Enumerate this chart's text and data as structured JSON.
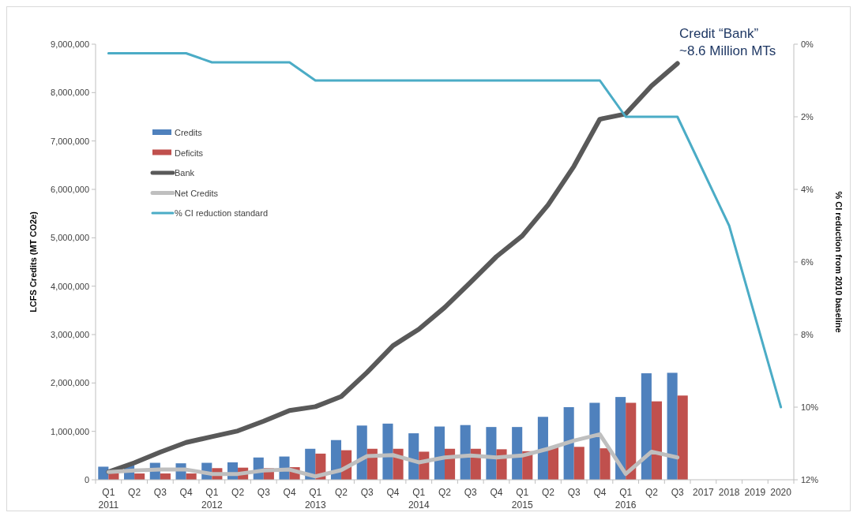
{
  "chart_data": {
    "type": "bar",
    "ylabel": "LCFS Credits (MT CO2e)",
    "y2label": "% CI reduction from 2010 baseline",
    "categories": [
      "Q1\n2011",
      "Q2",
      "Q3",
      "Q4",
      "Q1\n2012",
      "Q2",
      "Q3",
      "Q4",
      "Q1\n2013",
      "Q2",
      "Q3",
      "Q4",
      "Q1\n2014",
      "Q2",
      "Q3",
      "Q4",
      "Q1\n2015",
      "Q2",
      "Q3",
      "Q4",
      "Q1\n2016",
      "Q2",
      "Q3",
      "2017",
      "2018",
      "2019",
      "2020"
    ],
    "ylim": [
      0,
      9000000
    ],
    "yticks": [
      {
        "value": 0,
        "label": "0"
      },
      {
        "value": 1000000,
        "label": "1,000,000"
      },
      {
        "value": 2000000,
        "label": "2,000,000"
      },
      {
        "value": 3000000,
        "label": "3,000,000"
      },
      {
        "value": 4000000,
        "label": "4,000,000"
      },
      {
        "value": 5000000,
        "label": "5,000,000"
      },
      {
        "value": 6000000,
        "label": "6,000,000"
      },
      {
        "value": 7000000,
        "label": "7,000,000"
      },
      {
        "value": 8000000,
        "label": "8,000,000"
      },
      {
        "value": 9000000,
        "label": "9,000,000"
      }
    ],
    "y2lim": [
      12,
      0
    ],
    "y2ticks": [
      {
        "value": 0,
        "label": "0%"
      },
      {
        "value": 2,
        "label": "2%"
      },
      {
        "value": 4,
        "label": "4%"
      },
      {
        "value": 6,
        "label": "6%"
      },
      {
        "value": 8,
        "label": "8%"
      },
      {
        "value": 10,
        "label": "10%"
      },
      {
        "value": 12,
        "label": "12%"
      }
    ],
    "series": [
      {
        "name": "Credits",
        "color": "#4f81bd",
        "values": [
          270000,
          320000,
          350000,
          340000,
          350000,
          360000,
          460000,
          480000,
          640000,
          820000,
          1120000,
          1160000,
          960000,
          1100000,
          1130000,
          1090000,
          1090000,
          1300000,
          1500000,
          1590000,
          1710000,
          2200000,
          2210000,
          null,
          null,
          null,
          null
        ]
      },
      {
        "name": "Deficits",
        "color": "#c0504d",
        "values": [
          150000,
          130000,
          130000,
          130000,
          240000,
          250000,
          240000,
          260000,
          540000,
          610000,
          640000,
          640000,
          580000,
          640000,
          640000,
          630000,
          590000,
          670000,
          680000,
          650000,
          1590000,
          1620000,
          1740000,
          null,
          null,
          null,
          null
        ]
      },
      {
        "name": "Bank",
        "type": "line",
        "color": "#595959",
        "values": [
          160000,
          350000,
          570000,
          770000,
          890000,
          1010000,
          1210000,
          1430000,
          1510000,
          1720000,
          2220000,
          2770000,
          3110000,
          3560000,
          4080000,
          4610000,
          5040000,
          5680000,
          6480000,
          7450000,
          7560000,
          8140000,
          8600000,
          null,
          null,
          null,
          null
        ]
      },
      {
        "name": "Net Credits",
        "type": "line",
        "color": "#bfbfbf",
        "values": [
          160000,
          190000,
          210000,
          210000,
          120000,
          120000,
          190000,
          210000,
          70000,
          200000,
          490000,
          510000,
          360000,
          460000,
          500000,
          460000,
          500000,
          640000,
          810000,
          940000,
          120000,
          580000,
          460000,
          null,
          null,
          null,
          null
        ]
      },
      {
        "name": "% CI reduction standard",
        "type": "line",
        "axis": "y2",
        "color": "#4bacc6",
        "values": [
          0.25,
          0.25,
          0.25,
          0.25,
          0.5,
          0.5,
          0.5,
          0.5,
          1,
          1,
          1,
          1,
          1,
          1,
          1,
          1,
          1,
          1,
          1,
          1,
          2,
          2,
          2,
          3.5,
          5,
          7.5,
          10
        ]
      }
    ],
    "annotations": [
      "Credit “Bank”\n~8.6 Million MTs"
    ],
    "legend": "top left",
    "grid": false
  }
}
